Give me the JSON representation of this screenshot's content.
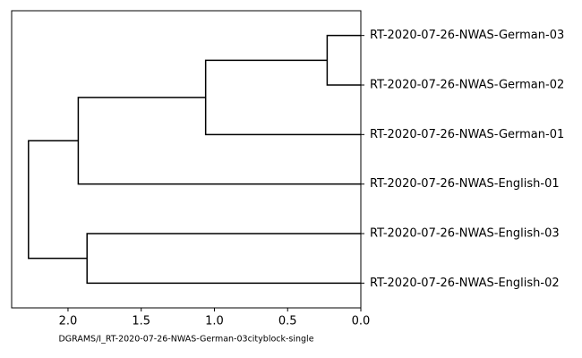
{
  "chart_data": {
    "type": "dendrogram",
    "orientation": "left",
    "xlabel": "DGRAMS/I_RT-2020-07-26-NWAS-German-03cityblock-single",
    "xlim": [
      2.385,
      0
    ],
    "xticks": [
      {
        "value": 2,
        "label": "2.0"
      },
      {
        "value": 1.5,
        "label": "1.5"
      },
      {
        "value": 1,
        "label": "1.0"
      },
      {
        "value": 0.5,
        "label": "0.5"
      },
      {
        "value": 0,
        "label": "0.0"
      }
    ],
    "color": "#000000",
    "tree": {
      "height": 2.27,
      "children": [
        {
          "height": 1.93,
          "children": [
            {
              "height": 1.06,
              "children": [
                {
                  "height": 0.23,
                  "children": [
                    {
                      "label": "RT-2020-07-26-NWAS-German-03"
                    },
                    {
                      "label": "RT-2020-07-26-NWAS-German-02"
                    }
                  ]
                },
                {
                  "label": "RT-2020-07-26-NWAS-German-01"
                }
              ]
            },
            {
              "label": "RT-2020-07-26-NWAS-English-01"
            }
          ]
        },
        {
          "height": 1.87,
          "children": [
            {
              "label": "RT-2020-07-26-NWAS-English-03"
            },
            {
              "label": "RT-2020-07-26-NWAS-English-02"
            }
          ]
        }
      ]
    }
  }
}
